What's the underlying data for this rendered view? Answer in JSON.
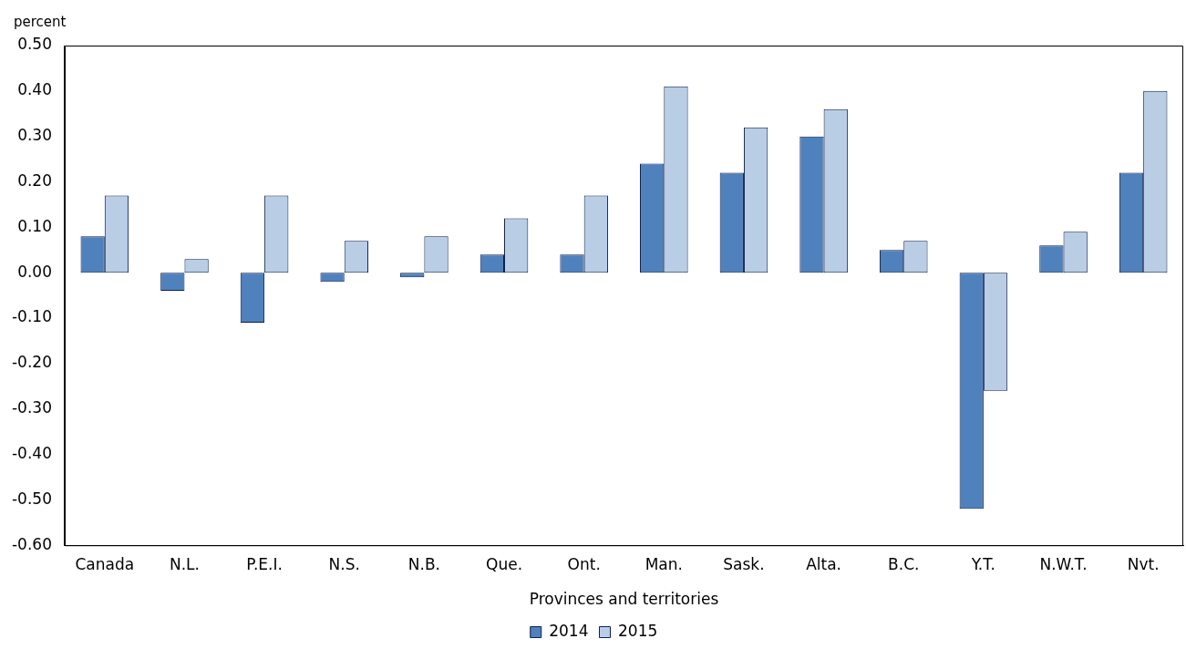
{
  "chart_data": {
    "type": "bar",
    "ylabel": "percent",
    "xlabel": "Provinces and territories",
    "categories": [
      "Canada",
      "N.L.",
      "P.E.I.",
      "N.S.",
      "N.B.",
      "Que.",
      "Ont.",
      "Man.",
      "Sask.",
      "Alta.",
      "B.C.",
      "Y.T.",
      "N.W.T.",
      "Nvt."
    ],
    "series": [
      {
        "name": "2014",
        "color": "#4f81bd",
        "values": [
          0.08,
          -0.04,
          -0.11,
          -0.02,
          -0.01,
          0.04,
          0.04,
          0.24,
          0.22,
          0.3,
          0.05,
          -0.52,
          0.06,
          0.22
        ]
      },
      {
        "name": "2015",
        "color": "#b9cde5",
        "values": [
          0.17,
          0.03,
          0.17,
          0.07,
          0.08,
          0.12,
          0.17,
          0.41,
          0.32,
          0.36,
          0.07,
          -0.26,
          0.09,
          0.4
        ]
      }
    ],
    "ylim": [
      -0.6,
      0.5
    ],
    "yticks": [
      {
        "value": -0.6,
        "label": "-0.60"
      },
      {
        "value": -0.5,
        "label": "-0.50"
      },
      {
        "value": -0.4,
        "label": "-0.40"
      },
      {
        "value": -0.3,
        "label": "-0.30"
      },
      {
        "value": -0.2,
        "label": "-0.20"
      },
      {
        "value": -0.1,
        "label": "-0.10"
      },
      {
        "value": 0,
        "label": "0.00"
      },
      {
        "value": 0.1,
        "label": "0.10"
      },
      {
        "value": 0.2,
        "label": "0.20"
      },
      {
        "value": 0.3,
        "label": "0.30"
      },
      {
        "value": 0.4,
        "label": "0.40"
      },
      {
        "value": 0.5,
        "label": "0.50"
      }
    ],
    "grid": false,
    "legend": "bottom"
  }
}
